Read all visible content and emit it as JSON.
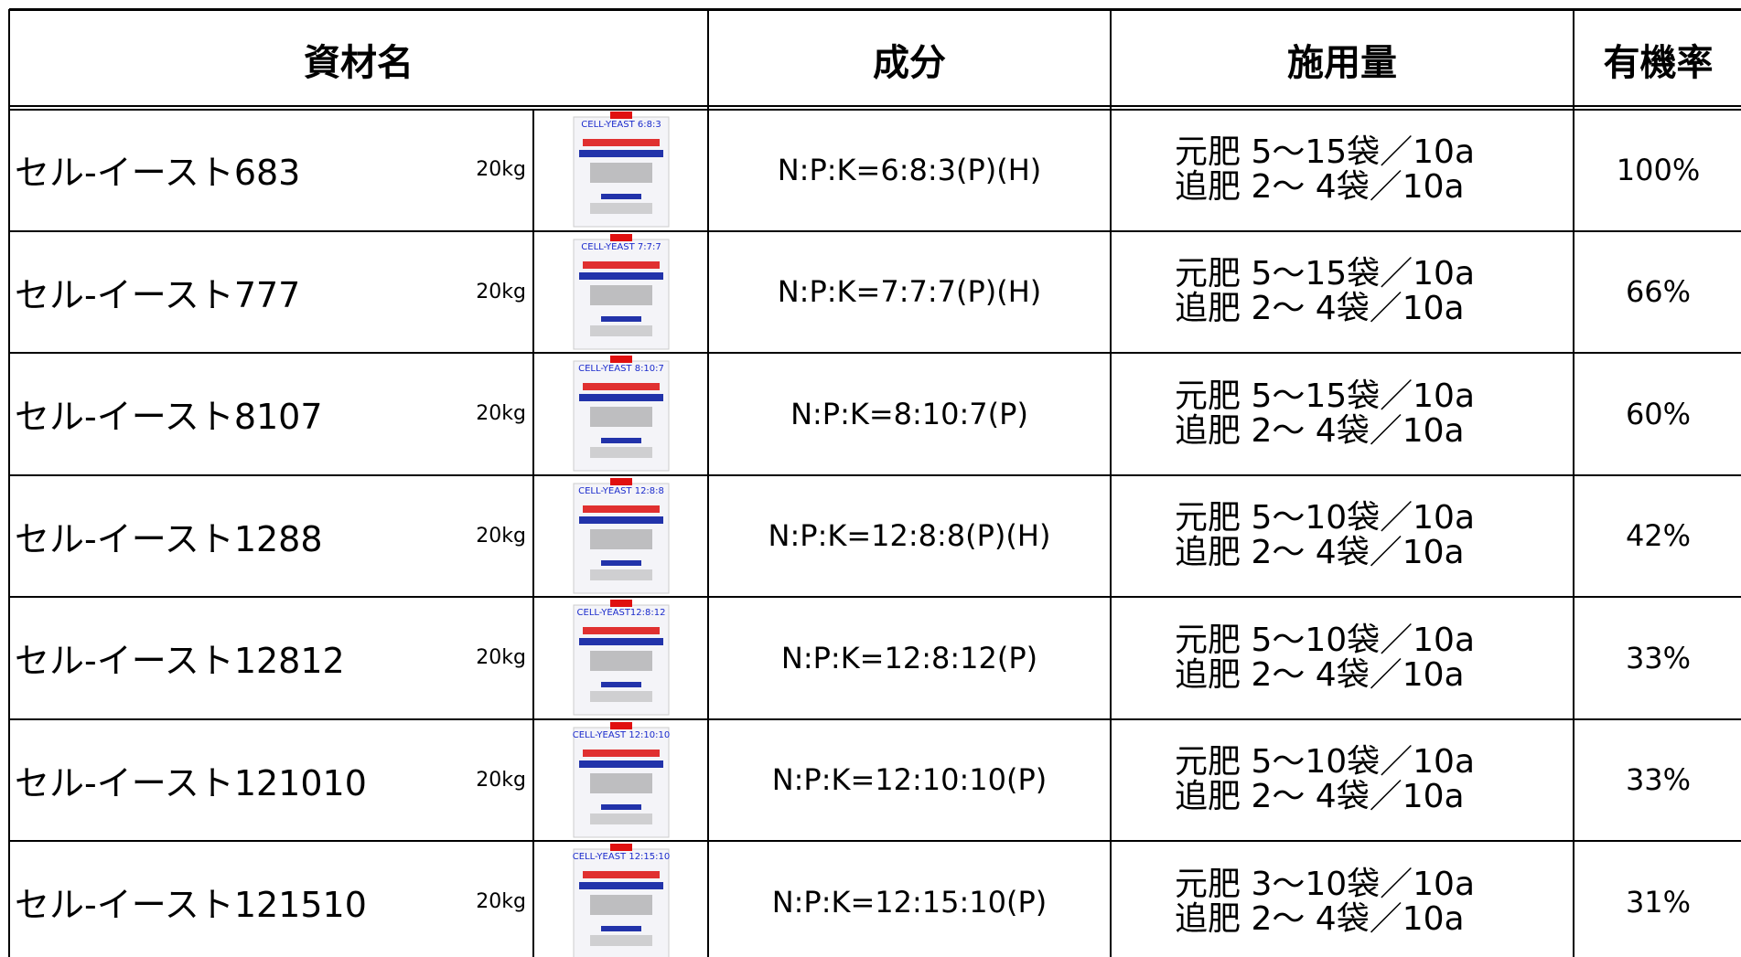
{
  "table": {
    "header": [
      "資材名",
      "成分",
      "施用量",
      "有機率"
    ],
    "rows": [
      {
        "name": "セル-イースト683",
        "weight": "20kg",
        "image_label": "CELL-YEAST 6:8:3",
        "component": "N:P:K=6:8:3(P)(H)",
        "dosage": [
          "元肥 5〜15袋／10a",
          "追肥 2〜 4袋／10a"
        ],
        "rate": "100%"
      },
      {
        "name": "セル-イースト777",
        "weight": "20kg",
        "image_label": "CELL-YEAST 7:7:7",
        "component": "N:P:K=7:7:7(P)(H)",
        "dosage": [
          "元肥 5〜15袋／10a",
          "追肥 2〜 4袋／10a"
        ],
        "rate": "66%"
      },
      {
        "name": "セル-イースト8107",
        "weight": "20kg",
        "image_label": "CELL-YEAST 8:10:7",
        "component": "N:P:K=8:10:7(P)",
        "dosage": [
          "元肥 5〜15袋／10a",
          "追肥 2〜 4袋／10a"
        ],
        "rate": "60%"
      },
      {
        "name": "セル-イースト1288",
        "weight": "20kg",
        "image_label": "CELL-YEAST 12:8:8",
        "component": "N:P:K=12:8:8(P)(H)",
        "dosage": [
          "元肥 5〜10袋／10a",
          "追肥 2〜 4袋／10a"
        ],
        "rate": "42%"
      },
      {
        "name": "セル-イースト12812",
        "weight": "20kg",
        "image_label": "CELL-YEAST12:8:12",
        "component": "N:P:K=12:8:12(P)",
        "dosage": [
          "元肥 5〜10袋／10a",
          "追肥 2〜 4袋／10a"
        ],
        "rate": "33%"
      },
      {
        "name": "セル-イースト121010",
        "weight": "20kg",
        "image_label": "CELL-YEAST 12:10:10",
        "component": "N:P:K=12:10:10(P)",
        "dosage": [
          "元肥 5〜10袋／10a",
          "追肥 2〜 4袋／10a"
        ],
        "rate": "33%"
      },
      {
        "name": "セル-イースト121510",
        "weight": "20kg",
        "image_label": "CELL-YEAST 12:15:10",
        "component": "N:P:K=12:15:10(P)",
        "dosage": [
          "元肥 3〜10袋／10a",
          "追肥 2〜 4袋／10a"
        ],
        "rate": "31%"
      }
    ]
  }
}
